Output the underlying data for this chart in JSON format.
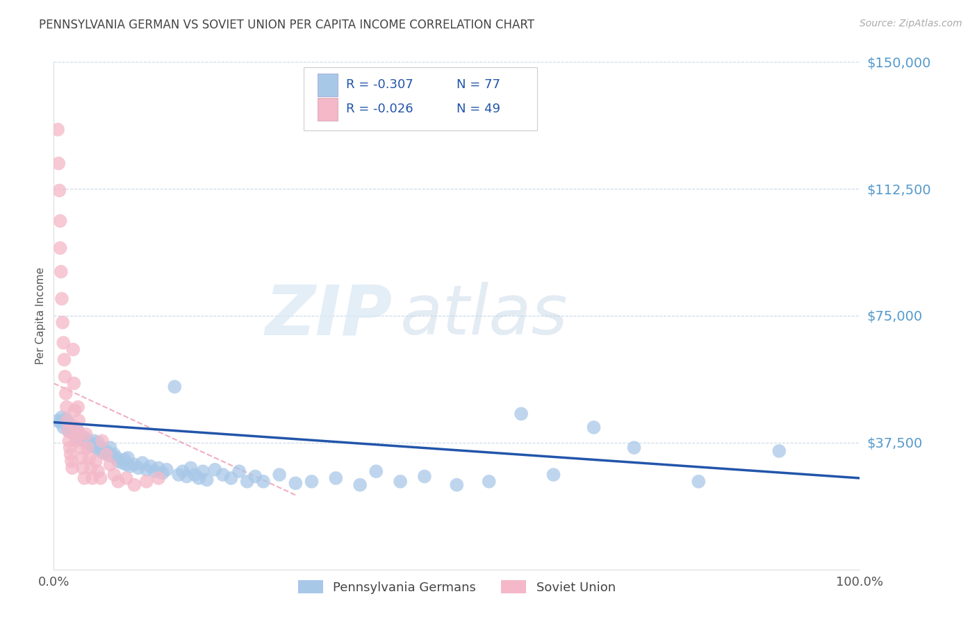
{
  "title": "PENNSYLVANIA GERMAN VS SOVIET UNION PER CAPITA INCOME CORRELATION CHART",
  "source_text": "Source: ZipAtlas.com",
  "ylabel": "Per Capita Income",
  "xlim": [
    0,
    1
  ],
  "ylim": [
    0,
    150000
  ],
  "yticks": [
    0,
    37500,
    75000,
    112500,
    150000
  ],
  "ytick_labels": [
    "",
    "$37,500",
    "$75,000",
    "$112,500",
    "$150,000"
  ],
  "xtick_labels": [
    "0.0%",
    "100.0%"
  ],
  "blue_color": "#a8c8e8",
  "pink_color": "#f4b8c8",
  "blue_line_color": "#2255aa",
  "pink_line_color": "#e87898",
  "legend_r1": "R = -0.307",
  "legend_n1": "N = 77",
  "legend_r2": "R = -0.026",
  "legend_n2": "N = 49",
  "legend_label1": "Pennsylvania Germans",
  "legend_label2": "Soviet Union",
  "watermark_zip": "ZIP",
  "watermark_atlas": "atlas",
  "background_color": "#ffffff",
  "grid_color": "#c8d8e8",
  "title_color": "#444444",
  "axis_label_color": "#5599cc",
  "blue_points_x": [
    0.005,
    0.008,
    0.01,
    0.012,
    0.015,
    0.018,
    0.02,
    0.022,
    0.025,
    0.028,
    0.03,
    0.032,
    0.035,
    0.038,
    0.04,
    0.042,
    0.045,
    0.048,
    0.05,
    0.052,
    0.055,
    0.058,
    0.06,
    0.062,
    0.065,
    0.068,
    0.07,
    0.072,
    0.075,
    0.078,
    0.08,
    0.085,
    0.088,
    0.09,
    0.092,
    0.095,
    0.1,
    0.105,
    0.11,
    0.115,
    0.12,
    0.125,
    0.13,
    0.135,
    0.14,
    0.15,
    0.155,
    0.16,
    0.165,
    0.17,
    0.175,
    0.18,
    0.185,
    0.19,
    0.2,
    0.21,
    0.22,
    0.23,
    0.24,
    0.25,
    0.26,
    0.28,
    0.3,
    0.32,
    0.35,
    0.38,
    0.4,
    0.43,
    0.46,
    0.5,
    0.54,
    0.58,
    0.62,
    0.67,
    0.72,
    0.8,
    0.9
  ],
  "blue_points_y": [
    44000,
    43500,
    45000,
    42000,
    44500,
    41000,
    43000,
    40500,
    42000,
    39000,
    41000,
    40000,
    38500,
    39000,
    37500,
    38000,
    37000,
    36500,
    38000,
    36000,
    37500,
    35000,
    36000,
    34500,
    35000,
    34000,
    36000,
    33500,
    34000,
    33000,
    32000,
    31500,
    32500,
    31000,
    33000,
    30500,
    31000,
    30000,
    31500,
    29500,
    30500,
    29000,
    30000,
    28500,
    29500,
    54000,
    28000,
    29000,
    27500,
    30000,
    28000,
    27000,
    29000,
    26500,
    29500,
    28000,
    27000,
    29000,
    26000,
    27500,
    26000,
    28000,
    25500,
    26000,
    27000,
    25000,
    29000,
    26000,
    27500,
    25000,
    26000,
    46000,
    28000,
    42000,
    36000,
    26000,
    35000
  ],
  "pink_points_x": [
    0.005,
    0.006,
    0.007,
    0.008,
    0.008,
    0.009,
    0.01,
    0.011,
    0.012,
    0.013,
    0.014,
    0.015,
    0.016,
    0.017,
    0.018,
    0.019,
    0.02,
    0.021,
    0.022,
    0.023,
    0.024,
    0.025,
    0.026,
    0.027,
    0.028,
    0.03,
    0.031,
    0.032,
    0.034,
    0.035,
    0.036,
    0.038,
    0.04,
    0.042,
    0.044,
    0.046,
    0.048,
    0.052,
    0.055,
    0.058,
    0.06,
    0.065,
    0.07,
    0.075,
    0.08,
    0.09,
    0.1,
    0.115,
    0.13
  ],
  "pink_points_y": [
    130000,
    120000,
    112000,
    103000,
    95000,
    88000,
    80000,
    73000,
    67000,
    62000,
    57000,
    52000,
    48000,
    44000,
    41000,
    38000,
    36000,
    34000,
    32000,
    30000,
    65000,
    55000,
    47000,
    42000,
    38000,
    48000,
    44000,
    40000,
    36000,
    33000,
    30000,
    27000,
    40000,
    36000,
    33000,
    30000,
    27000,
    32000,
    29000,
    27000,
    38000,
    34000,
    31000,
    28000,
    26000,
    27000,
    25000,
    26000,
    27000
  ]
}
